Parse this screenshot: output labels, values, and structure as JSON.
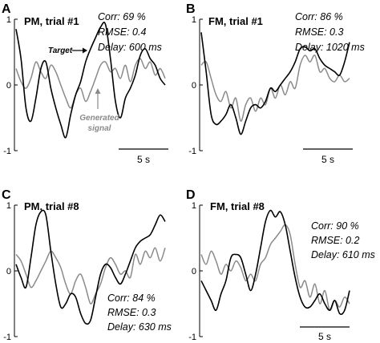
{
  "chart_data": [
    {
      "type": "line",
      "letter": "A",
      "title": "PM, trial #1",
      "stats": [
        "Corr: 69 %",
        "RMSE: 0.4",
        "Delay: 600 ms"
      ],
      "yticks": [
        "1",
        "0",
        "-1"
      ],
      "ylim": [
        -1,
        1
      ],
      "xlim": [
        0,
        15
      ],
      "scalebar": "5 s",
      "annotations": {
        "target": "Target",
        "generated": [
          "Generated",
          "signal"
        ]
      },
      "series": [
        {
          "color": "#000000",
          "x": [
            0,
            0.5,
            1,
            1.5,
            2,
            2.5,
            3,
            3.5,
            4,
            4.5,
            5,
            5.5,
            6,
            6.5,
            7,
            7.5,
            8,
            8.5,
            9,
            9.5,
            10,
            10.5,
            11,
            11.5,
            12,
            12.5,
            13,
            13.5,
            14,
            14.5,
            15
          ],
          "y": [
            0.85,
            0.4,
            -0.35,
            -0.55,
            -0.2,
            0.25,
            0.35,
            -0.05,
            -0.35,
            -0.6,
            -0.8,
            -0.45,
            -0.15,
            0.05,
            0.35,
            0.55,
            0.72,
            0.88,
            0.92,
            0.4,
            -0.25,
            -0.5,
            -0.2,
            -0.05,
            0.15,
            0.45,
            0.55,
            0.4,
            0.3,
            0.1,
            0.0
          ]
        },
        {
          "color": "#8a8a8a",
          "x": [
            0,
            0.5,
            1,
            1.5,
            2,
            2.5,
            3,
            3.5,
            4,
            4.5,
            5,
            5.5,
            6,
            6.5,
            7,
            7.5,
            8,
            8.5,
            9,
            9.5,
            10,
            10.5,
            11,
            11.5,
            12,
            12.5,
            13,
            13.5,
            14,
            14.5,
            15
          ],
          "y": [
            0.25,
            0.05,
            -0.05,
            0.1,
            0.35,
            0.2,
            0.1,
            0.3,
            0.2,
            0.0,
            -0.2,
            -0.35,
            -0.15,
            -0.05,
            -0.25,
            -0.1,
            0.1,
            0.3,
            0.35,
            0.2,
            0.25,
            0.1,
            0.3,
            0.05,
            0.3,
            0.4,
            0.25,
            0.35,
            0.15,
            0.25,
            0.1
          ]
        }
      ]
    },
    {
      "type": "line",
      "letter": "B",
      "title": "FM, trial #1",
      "stats": [
        "Corr: 86 %",
        "RMSE: 0.3",
        "Delay: 1020 ms"
      ],
      "yticks": [
        "1",
        "0",
        "-1"
      ],
      "ylim": [
        -1,
        1
      ],
      "xlim": [
        0,
        15
      ],
      "scalebar": "5 s",
      "series": [
        {
          "color": "#000000",
          "x": [
            0,
            0.5,
            1,
            1.5,
            2,
            2.5,
            3,
            3.5,
            4,
            4.5,
            5,
            5.5,
            6,
            6.5,
            7,
            7.5,
            8,
            8.5,
            9,
            9.5,
            10,
            10.5,
            11,
            11.5,
            12,
            12.5,
            13,
            13.5,
            14,
            14.5,
            15
          ],
          "y": [
            0.8,
            0.2,
            -0.45,
            -0.6,
            -0.55,
            -0.45,
            -0.3,
            -0.5,
            -0.75,
            -0.55,
            -0.35,
            -0.3,
            -0.35,
            -0.25,
            -0.05,
            -0.1,
            0.0,
            0.1,
            0.2,
            0.35,
            0.55,
            0.58,
            0.52,
            0.55,
            0.4,
            0.3,
            0.25,
            0.2,
            0.15,
            0.35,
            0.65
          ]
        },
        {
          "color": "#8a8a8a",
          "x": [
            0,
            0.5,
            1,
            1.5,
            2,
            2.5,
            3,
            3.5,
            4,
            4.5,
            5,
            5.5,
            6,
            6.5,
            7,
            7.5,
            8,
            8.5,
            9,
            9.5,
            10,
            10.5,
            11,
            11.5,
            12,
            12.5,
            13,
            13.5,
            14,
            14.5,
            15
          ],
          "y": [
            0.3,
            0.35,
            0.1,
            -0.15,
            -0.25,
            -0.1,
            -0.35,
            -0.2,
            -0.55,
            -0.3,
            -0.2,
            -0.4,
            -0.2,
            -0.3,
            -0.05,
            -0.2,
            0.0,
            -0.15,
            0.05,
            -0.05,
            0.3,
            0.45,
            0.35,
            0.45,
            0.2,
            0.25,
            0.1,
            0.05,
            0.15,
            0.05,
            0.1
          ]
        }
      ]
    },
    {
      "type": "line",
      "letter": "C",
      "title": "PM, trial #8",
      "stats": [
        "Corr: 84 %",
        "RMSE: 0.3",
        "Delay: 630 ms"
      ],
      "yticks": [
        "1",
        "0",
        "-1"
      ],
      "ylim": [
        -1,
        1
      ],
      "xlim": [
        0,
        15
      ],
      "scalebar": "5 s",
      "series": [
        {
          "color": "#000000",
          "x": [
            0,
            0.5,
            1,
            1.5,
            2,
            2.5,
            3,
            3.5,
            4,
            4.5,
            5,
            5.5,
            6,
            6.5,
            7,
            7.5,
            8,
            8.5,
            9,
            9.5,
            10,
            10.5,
            11,
            11.5,
            12,
            12.5,
            13,
            13.5,
            14,
            14.5,
            15
          ],
          "y": [
            0.1,
            -0.1,
            -0.25,
            0.2,
            0.7,
            0.9,
            0.85,
            0.3,
            -0.2,
            -0.55,
            -0.5,
            -0.35,
            -0.4,
            -0.65,
            -0.8,
            -0.75,
            -0.4,
            -0.05,
            0.1,
            0.05,
            -0.1,
            -0.2,
            -0.05,
            0.15,
            0.35,
            0.45,
            0.5,
            0.55,
            0.7,
            0.85,
            0.75
          ]
        },
        {
          "color": "#8a8a8a",
          "x": [
            0,
            0.5,
            1,
            1.5,
            2,
            2.5,
            3,
            3.5,
            4,
            4.5,
            5,
            5.5,
            6,
            6.5,
            7,
            7.5,
            8,
            8.5,
            9,
            9.5,
            10,
            10.5,
            11,
            11.5,
            12,
            12.5,
            13,
            13.5,
            14,
            14.5,
            15
          ],
          "y": [
            0.25,
            0.15,
            -0.05,
            -0.25,
            -0.15,
            0.0,
            0.15,
            0.3,
            0.2,
            0.05,
            -0.2,
            -0.35,
            -0.15,
            -0.05,
            -0.25,
            -0.5,
            -0.35,
            -0.2,
            0.05,
            0.2,
            0.1,
            -0.05,
            0.0,
            -0.1,
            0.25,
            0.1,
            0.3,
            0.2,
            0.35,
            0.15,
            0.35
          ]
        }
      ]
    },
    {
      "type": "line",
      "letter": "D",
      "title": "FM, trial #8",
      "stats": [
        "Corr: 90 %",
        "RMSE: 0.2",
        "Delay: 610 ms"
      ],
      "yticks": [
        "1",
        "0",
        "-1"
      ],
      "ylim": [
        -1,
        1
      ],
      "xlim": [
        0,
        15
      ],
      "scalebar": "5 s",
      "series": [
        {
          "color": "#000000",
          "x": [
            0,
            0.5,
            1,
            1.5,
            2,
            2.5,
            3,
            3.5,
            4,
            4.5,
            5,
            5.5,
            6,
            6.5,
            7,
            7.5,
            8,
            8.5,
            9,
            9.5,
            10,
            10.5,
            11,
            11.5,
            12,
            12.5,
            13,
            13.5,
            14,
            14.5,
            15
          ],
          "y": [
            -0.15,
            -0.3,
            -0.45,
            -0.6,
            -0.35,
            -0.15,
            0.2,
            0.25,
            0.2,
            -0.05,
            -0.3,
            -0.05,
            0.35,
            0.75,
            0.92,
            0.82,
            0.9,
            0.7,
            0.3,
            -0.1,
            -0.4,
            -0.55,
            -0.55,
            -0.45,
            -0.35,
            -0.5,
            -0.6,
            -0.45,
            -0.65,
            -0.6,
            -0.3
          ]
        },
        {
          "color": "#8a8a8a",
          "x": [
            0,
            0.5,
            1,
            1.5,
            2,
            2.5,
            3,
            3.5,
            4,
            4.5,
            5,
            5.5,
            6,
            6.5,
            7,
            7.5,
            8,
            8.5,
            9,
            9.5,
            10,
            10.5,
            11,
            11.5,
            12,
            12.5,
            13,
            13.5,
            14,
            14.5,
            15
          ],
          "y": [
            0.25,
            0.1,
            0.3,
            0.15,
            -0.05,
            0.1,
            0.0,
            0.15,
            0.05,
            -0.15,
            -0.05,
            -0.15,
            0.1,
            0.2,
            0.4,
            0.5,
            0.6,
            0.7,
            0.55,
            0.1,
            -0.25,
            -0.15,
            -0.4,
            -0.2,
            -0.5,
            -0.3,
            -0.6,
            -0.45,
            -0.55,
            -0.4,
            -0.5
          ]
        }
      ]
    }
  ]
}
